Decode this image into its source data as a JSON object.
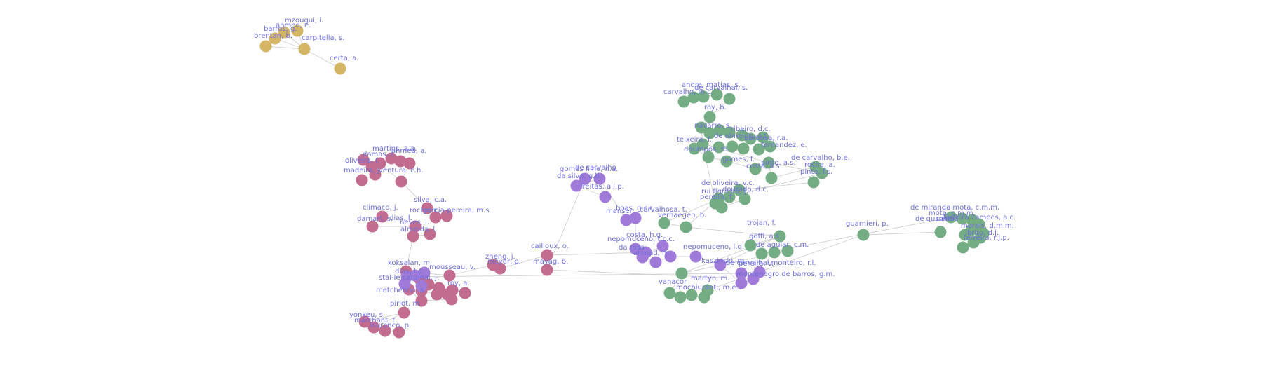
{
  "colors": {
    "gold": "#d4b465",
    "pink": "#c26d90",
    "purple": "#a07ad8",
    "green": "#74ad84",
    "edge": "#cfcfcf",
    "label": "#6f6fd8"
  },
  "labels": [
    "mzougui, i.",
    "ahmed, e.",
    "barros, g.",
    "brentan, b.",
    "carpitella, s.",
    "certa, a.",
    "martins, a.a.",
    "damas, r.",
    "ahmed, a.",
    "oliveira, f.",
    "madeira, j.",
    "ventura, c.h.",
    "silva, c.a.",
    "climaco, j.",
    "rocha, c.",
    "garcia-pereira, m.s.",
    "damart, s.",
    "dias, l.",
    "neves, l.",
    "almeida, l.",
    "zheng, j.",
    "meyer, p.",
    "cailloux, o.",
    "mayag, b.",
    "koksalan, m.",
    "mousseau, v.",
    "dias, l.c.",
    "stal-le cardinal, j.",
    "roy, a.",
    "metchebon, s.",
    "pirlot, m.",
    "yonkeu, s.",
    "marchant, t.",
    "lourenco, p.",
    "gomes filho, n.a.",
    "de carvalho",
    "da silva, g.b.",
    "freitas, a.l.p.",
    "manser",
    "boas, g.c.r.",
    "nepomuceno, t.c.c.",
    "da rosa",
    "ahmad, m.",
    "costa, h.g.",
    "andre, matias, s.",
    "de carvalhal, s.",
    "carvalho, m.c.",
    "roy, b.",
    "navarro, s.",
    "ribeiro, d.c.",
    "teixeira, f.",
    "de almeida, a.t.",
    "barbosa, r.a.",
    "doumpos, m.",
    "fernandez, e.",
    "gomes, f.",
    "pinto, a.s.",
    "costa, a.s.",
    "de carvalho, b.e.",
    "rocha, a.",
    "pinto, f.s.",
    "de oliveira, v.c.",
    "rui figueira, j.",
    "pereira, f.",
    "dourado, d.c.",
    "verhaegen, b.",
    "carvalhosa, t.",
    "trojan, f.",
    "goffi, a.s.",
    "de aguiar, c.m.",
    "nepomuceno, l.d.",
    "pereira, v.",
    "kaszinski, m.",
    "de carvalhal monteiro, r.l.",
    "montenegro de barros, g.m.",
    "vanacor",
    "martyn, m.",
    "mochiuranti, m.e.",
    "guarnieri, p.",
    "de miranda mota, c.m.m.",
    "mota, c.m.m.",
    "de gusmao",
    "carmo",
    "ferreira campos, a.c.",
    "morais, d.m.m.",
    "brito, d.j.",
    "ferreira, r.j.p."
  ]
}
